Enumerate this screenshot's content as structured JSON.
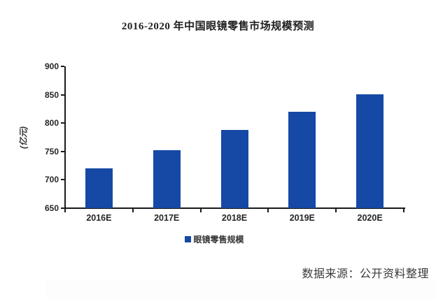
{
  "page": {
    "title": "2016-2020 年中国眼镜零售市场规模预测",
    "source_note": "数据来源：公开资料整理"
  },
  "chart_data": {
    "type": "bar",
    "title": "2016-2020 年中国眼镜零售市场规模预测",
    "categories": [
      "2016E",
      "2017E",
      "2018E",
      "2019E",
      "2020E"
    ],
    "series": [
      {
        "name": "眼镜零售规模",
        "values": [
          720,
          752,
          788,
          820,
          851
        ]
      }
    ],
    "xlabel": "",
    "ylabel": "(亿元)",
    "ylim": [
      650,
      900
    ],
    "ytick_step": 50,
    "yticks": [
      650,
      700,
      750,
      800,
      850,
      900
    ],
    "grid": false,
    "legend_position": "bottom",
    "bar_color": "#1549a5",
    "axis_color": "#1a1a1a",
    "tick_label_color": "#262626"
  },
  "legend": {
    "items": [
      {
        "label": "眼镜零售规模",
        "color": "#1549a5"
      }
    ]
  }
}
